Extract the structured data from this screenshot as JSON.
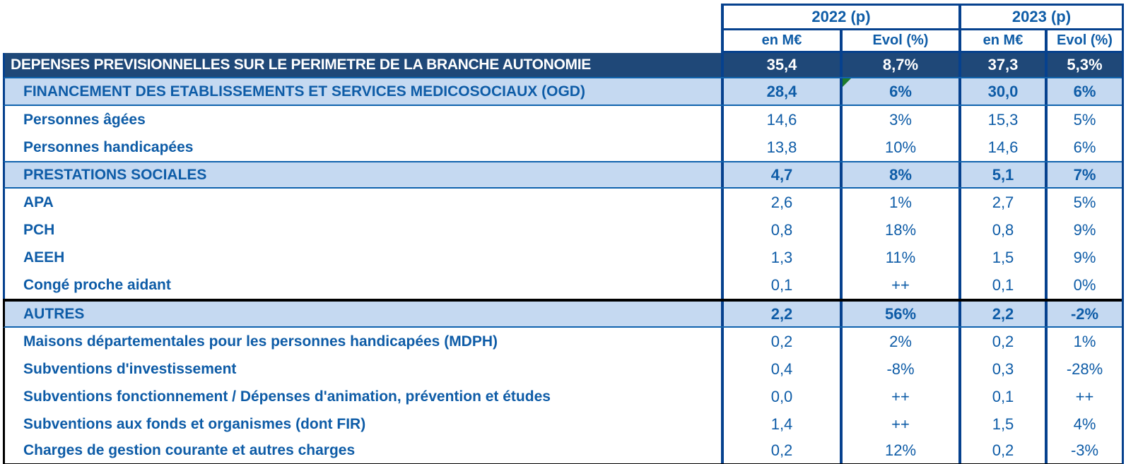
{
  "header": {
    "year_groups": [
      "2022 (p)",
      "2023 (p)"
    ],
    "subheaders": [
      "en M€",
      "Evol (%)",
      "en M€",
      "Evol (%)"
    ]
  },
  "rows": [
    {
      "label": "DEPENSES PREVISIONNELLES SUR LE PERIMETRE DE LA BRANCHE AUTONOMIE",
      "type": "title",
      "values": [
        "35,4",
        "8,7%",
        "37,3",
        "5,3%"
      ]
    },
    {
      "label": "FINANCEMENT DES ETABLISSEMENTS ET SERVICES MEDICOSOCIAUX (OGD)",
      "type": "section",
      "values": [
        "28,4",
        "6%",
        "30,0",
        "6%"
      ],
      "note_col": 1
    },
    {
      "label": "Personnes âgées",
      "type": "detail",
      "values": [
        "14,6",
        "3%",
        "15,3",
        "5%"
      ]
    },
    {
      "label": "Personnes handicapées",
      "type": "detail",
      "values": [
        "13,8",
        "10%",
        "14,6",
        "6%"
      ]
    },
    {
      "label": "PRESTATIONS SOCIALES",
      "type": "section",
      "values": [
        "4,7",
        "8%",
        "5,1",
        "7%"
      ]
    },
    {
      "label": "APA",
      "type": "detail",
      "values": [
        "2,6",
        "1%",
        "2,7",
        "5%"
      ]
    },
    {
      "label": "PCH",
      "type": "detail",
      "values": [
        "0,8",
        "18%",
        "0,8",
        "9%"
      ]
    },
    {
      "label": "AEEH",
      "type": "detail",
      "values": [
        "1,3",
        "11%",
        "1,5",
        "9%"
      ]
    },
    {
      "label": "Congé proche aidant",
      "type": "detail",
      "values": [
        "0,1",
        "++",
        "0,1",
        "0%"
      ]
    },
    {
      "label": "AUTRES",
      "type": "section",
      "values": [
        "2,2",
        "56%",
        "2,2",
        "-2%"
      ],
      "heavy_divider": true
    },
    {
      "label": "Maisons départementales pour les personnes handicapées (MDPH)",
      "type": "detail",
      "values": [
        "0,2",
        "2%",
        "0,2",
        "1%"
      ]
    },
    {
      "label": "Subventions d'investissement",
      "type": "detail",
      "values": [
        "0,4",
        "-8%",
        "0,3",
        "-28%"
      ]
    },
    {
      "label": "Subventions fonctionnement / Dépenses d'animation, prévention et études",
      "type": "detail",
      "values": [
        "0,0",
        "++",
        "0,1",
        "++"
      ]
    },
    {
      "label": "Subventions aux fonds et organismes (dont FIR)",
      "type": "detail",
      "values": [
        "1,4",
        "++",
        "1,5",
        "4%"
      ]
    },
    {
      "label": "Charges de gestion courante et autres charges",
      "type": "detail",
      "values": [
        "0,2",
        "12%",
        "0,2",
        "-3%"
      ]
    }
  ],
  "colors": {
    "title_row_bg": "#1F4878",
    "section_row_bg": "#C5D9F1",
    "text_blue": "#0E5CA7",
    "border_blue": "#06418E",
    "separator_blue": "#1063AE",
    "heavy_divider_black": "#000000",
    "note_marker_green": "#1E7B2C"
  }
}
